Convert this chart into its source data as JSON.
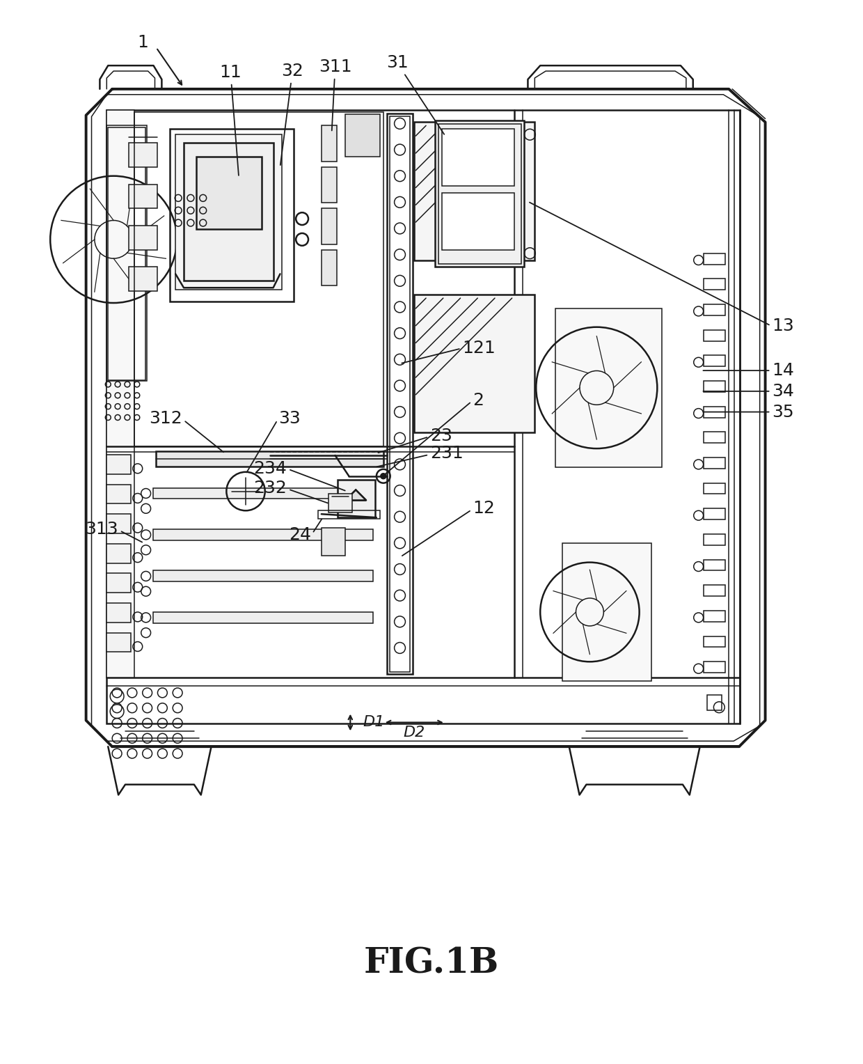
{
  "title": "FIG.1B",
  "title_fontsize": 36,
  "background_color": "#ffffff",
  "line_color": "#1a1a1a",
  "lw_outer": 2.8,
  "lw_inner": 1.8,
  "lw_thin": 1.1,
  "label_fontsize": 18,
  "fig_w": 12.4,
  "fig_h": 15.28
}
